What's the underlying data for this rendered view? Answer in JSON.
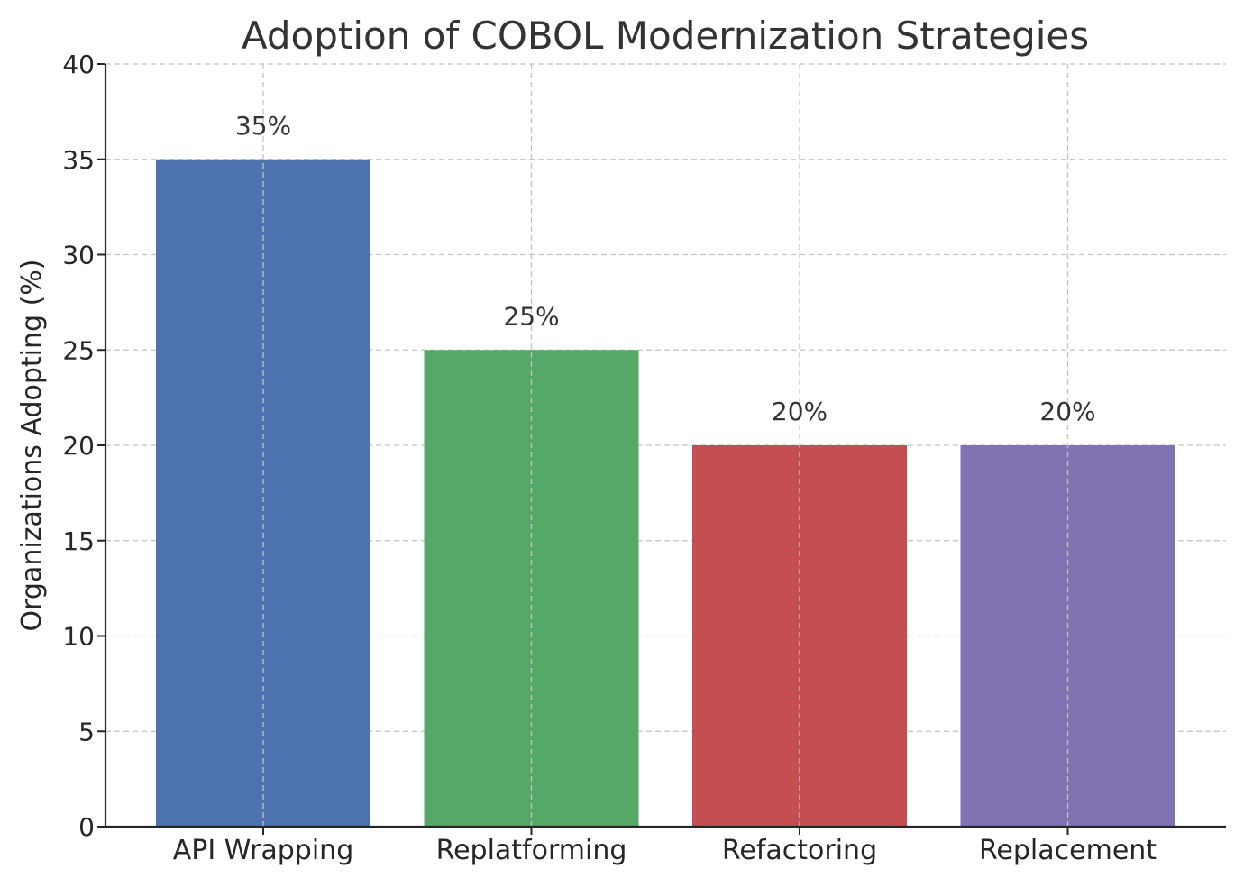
{
  "chart_data": {
    "type": "bar",
    "title": "Adoption of COBOL Modernization Strategies",
    "xlabel": "",
    "ylabel": "Organizations Adopting (%)",
    "categories": [
      "API Wrapping",
      "Replatforming",
      "Refactoring",
      "Replacement"
    ],
    "values": [
      35,
      25,
      20,
      20
    ],
    "data_labels": [
      "35%",
      "25%",
      "20%",
      "20%"
    ],
    "colors": [
      "#4c72b0",
      "#55a868",
      "#c44e52",
      "#8172b2"
    ],
    "ylim": [
      0,
      40
    ],
    "yticks": [
      0,
      5,
      10,
      15,
      20,
      25,
      30,
      35,
      40
    ],
    "grid": true
  }
}
